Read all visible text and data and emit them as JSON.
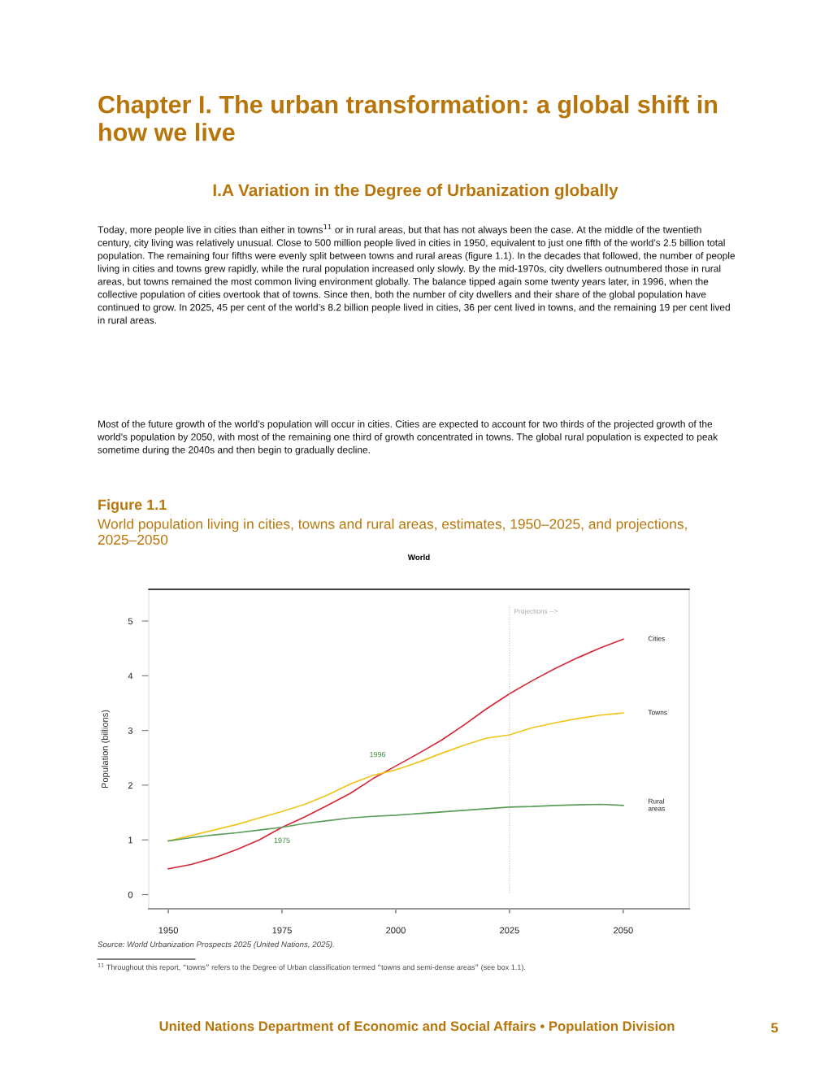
{
  "chart_data": {
    "type": "line",
    "title": "World",
    "ylabel": "Population (billions)",
    "x": [
      1950,
      1955,
      1960,
      1965,
      1970,
      1975,
      1980,
      1985,
      1990,
      1995,
      2000,
      2005,
      2010,
      2015,
      2020,
      2025,
      2030,
      2035,
      2040,
      2045,
      2050
    ],
    "series": [
      {
        "name": "Cities",
        "color": "#d62839",
        "values": [
          0.47,
          0.55,
          0.67,
          0.82,
          1.0,
          1.23,
          1.42,
          1.63,
          1.85,
          2.12,
          2.35,
          2.58,
          2.82,
          3.1,
          3.4,
          3.67,
          3.91,
          4.13,
          4.33,
          4.51,
          4.67
        ]
      },
      {
        "name": "Towns",
        "color": "#f0c419",
        "values": [
          0.98,
          1.08,
          1.18,
          1.28,
          1.4,
          1.52,
          1.65,
          1.82,
          2.02,
          2.18,
          2.28,
          2.42,
          2.58,
          2.73,
          2.86,
          2.92,
          3.05,
          3.14,
          3.22,
          3.28,
          3.32
        ]
      },
      {
        "name": "Rural\nareas",
        "color": "#5a9e5a",
        "values": [
          0.98,
          1.04,
          1.09,
          1.13,
          1.18,
          1.23,
          1.3,
          1.35,
          1.4,
          1.43,
          1.45,
          1.48,
          1.51,
          1.54,
          1.57,
          1.6,
          1.61,
          1.63,
          1.64,
          1.65,
          1.63
        ]
      }
    ],
    "xlim": [
      1945.7,
      2064.5
    ],
    "xticks": [
      1950,
      1975,
      2000,
      2025,
      2050
    ],
    "ylim": [
      -0.26,
      5.58
    ],
    "yticks": [
      0,
      1,
      2,
      3,
      4,
      5
    ],
    "grid": false,
    "marker": "none",
    "line_style": "solid",
    "ref_lines": [
      {
        "axis": "x",
        "value": 2025,
        "label": "Projections -->",
        "color": "#bbbbbb",
        "line_style": "dotted"
      }
    ],
    "annotations": [
      "Chapter I. The urban transformation: a global shift in how we live",
      "I.A Variation in the Degree of Urbanization globally",
      "Today, more people live in cities than either in towns$^{11}$ or in rural areas, but that has not always been the case. At the middle of the twentieth century, city living was relatively unusual. Close to 500 million people lived in cities in 1950, equivalent to just one fifth of the world’s 2.5 billion total population. The remaining four fifths were evenly split between towns and rural areas (figure 1.1). In the decades that followed, the number of people living in cities and towns grew rapidly, while the rural population increased only slowly. By the mid-1970s, city dwellers outnumbered those in rural areas, but towns remained the most common living environment globally. The balance tipped again some twenty years later, in 1996, when the collective population of cities overtook that of towns. Since then, both the number of city dwellers and their share of the global population have continued to grow. In 2025, 45 per cent of the world’s 8.2 billion people lived in cities, 36 per cent lived in towns, and the remaining 19 per cent lived in rural areas.",
      "Most of the future growth of the world’s population will occur in cities. Cities are expected to account for two thirds of the projected growth of the world’s population by 2050, with most of the remaining one third of growth concentrated in towns. The global rural population is expected to peak sometime during the 2040s and then begin to gradually decline.",
      "Figure 1.1",
      "World population living in cities, towns and rural areas, estimates, 1950–2025, and projections, 2025–2050",
      "Source: World Urbanization Prospects 2025 (United Nations, 2025).",
      "$^{11}$ Throughout this report, “towns” refers to the Degree of Urban classification termed “towns and semi-dense areas” (see box 1.1).",
      "United Nations Department of Economic and Social Affairs • Population Division",
      "5",
      "1975",
      "1996"
    ]
  }
}
